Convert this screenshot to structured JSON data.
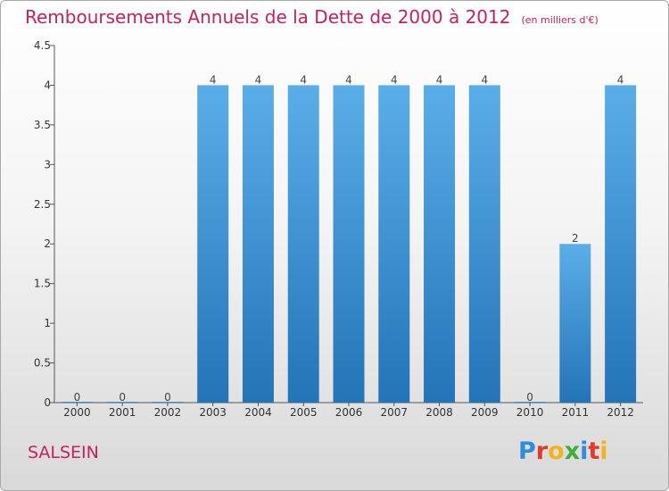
{
  "title": {
    "main": "Remboursements Annuels de la Dette de 2000 à 2012",
    "unit": "(en milliers d'€)"
  },
  "commune": "SALSEIN",
  "logo": "Proxiti",
  "colors": {
    "title": "#c6205e",
    "bar_top": "#5aaee8",
    "bar_bottom": "#2374b8"
  },
  "chart_data": {
    "type": "bar",
    "categories": [
      "2000",
      "2001",
      "2002",
      "2003",
      "2004",
      "2005",
      "2006",
      "2007",
      "2008",
      "2009",
      "2010",
      "2011",
      "2012"
    ],
    "values": [
      0,
      0,
      0,
      4,
      4,
      4,
      4,
      4,
      4,
      4,
      0,
      2,
      4
    ],
    "data_labels": [
      "0",
      "0",
      "0",
      "4",
      "4",
      "4",
      "4",
      "4",
      "4",
      "4",
      "0",
      "2",
      "4"
    ],
    "ylim": [
      0,
      4.5
    ],
    "y_ticks": [
      0,
      0.5,
      1,
      1.5,
      2,
      2.5,
      3,
      3.5,
      4,
      4.5
    ],
    "y_tick_labels": [
      "0",
      "0.5",
      "1",
      "1.5",
      "2",
      "2.5",
      "3",
      "3.5",
      "4",
      "4.5"
    ],
    "grid": false,
    "legend": "none"
  }
}
